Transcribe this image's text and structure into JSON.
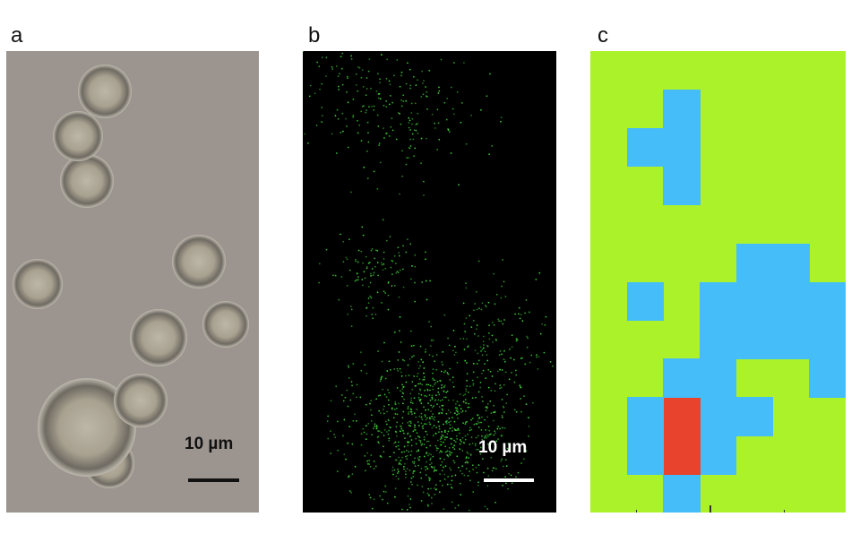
{
  "panels": [
    {
      "label": "a",
      "scale_bar": "10 µm",
      "scale_bar_color": "#111111"
    },
    {
      "label": "b",
      "scale_bar": "10 µm",
      "scale_bar_color": "#ffffff"
    },
    {
      "label": "c"
    }
  ],
  "grid_map": {
    "colors": {
      "0": "#abf22a",
      "1": "#45bdf9",
      "2": "#e8432c"
    },
    "rows": [
      [
        0,
        0,
        0,
        0,
        0,
        0,
        0
      ],
      [
        0,
        0,
        1,
        0,
        0,
        0,
        0
      ],
      [
        0,
        1,
        1,
        0,
        0,
        0,
        0
      ],
      [
        0,
        0,
        1,
        0,
        0,
        0,
        0
      ],
      [
        0,
        0,
        0,
        0,
        0,
        0,
        0
      ],
      [
        0,
        0,
        0,
        0,
        1,
        1,
        0
      ],
      [
        0,
        1,
        0,
        1,
        1,
        1,
        1
      ],
      [
        0,
        0,
        0,
        1,
        1,
        1,
        1
      ],
      [
        0,
        0,
        1,
        1,
        0,
        0,
        1
      ],
      [
        0,
        1,
        2,
        1,
        1,
        0,
        0
      ],
      [
        0,
        1,
        2,
        1,
        0,
        0,
        0
      ],
      [
        0,
        0,
        1,
        0,
        0,
        0,
        0
      ]
    ]
  }
}
